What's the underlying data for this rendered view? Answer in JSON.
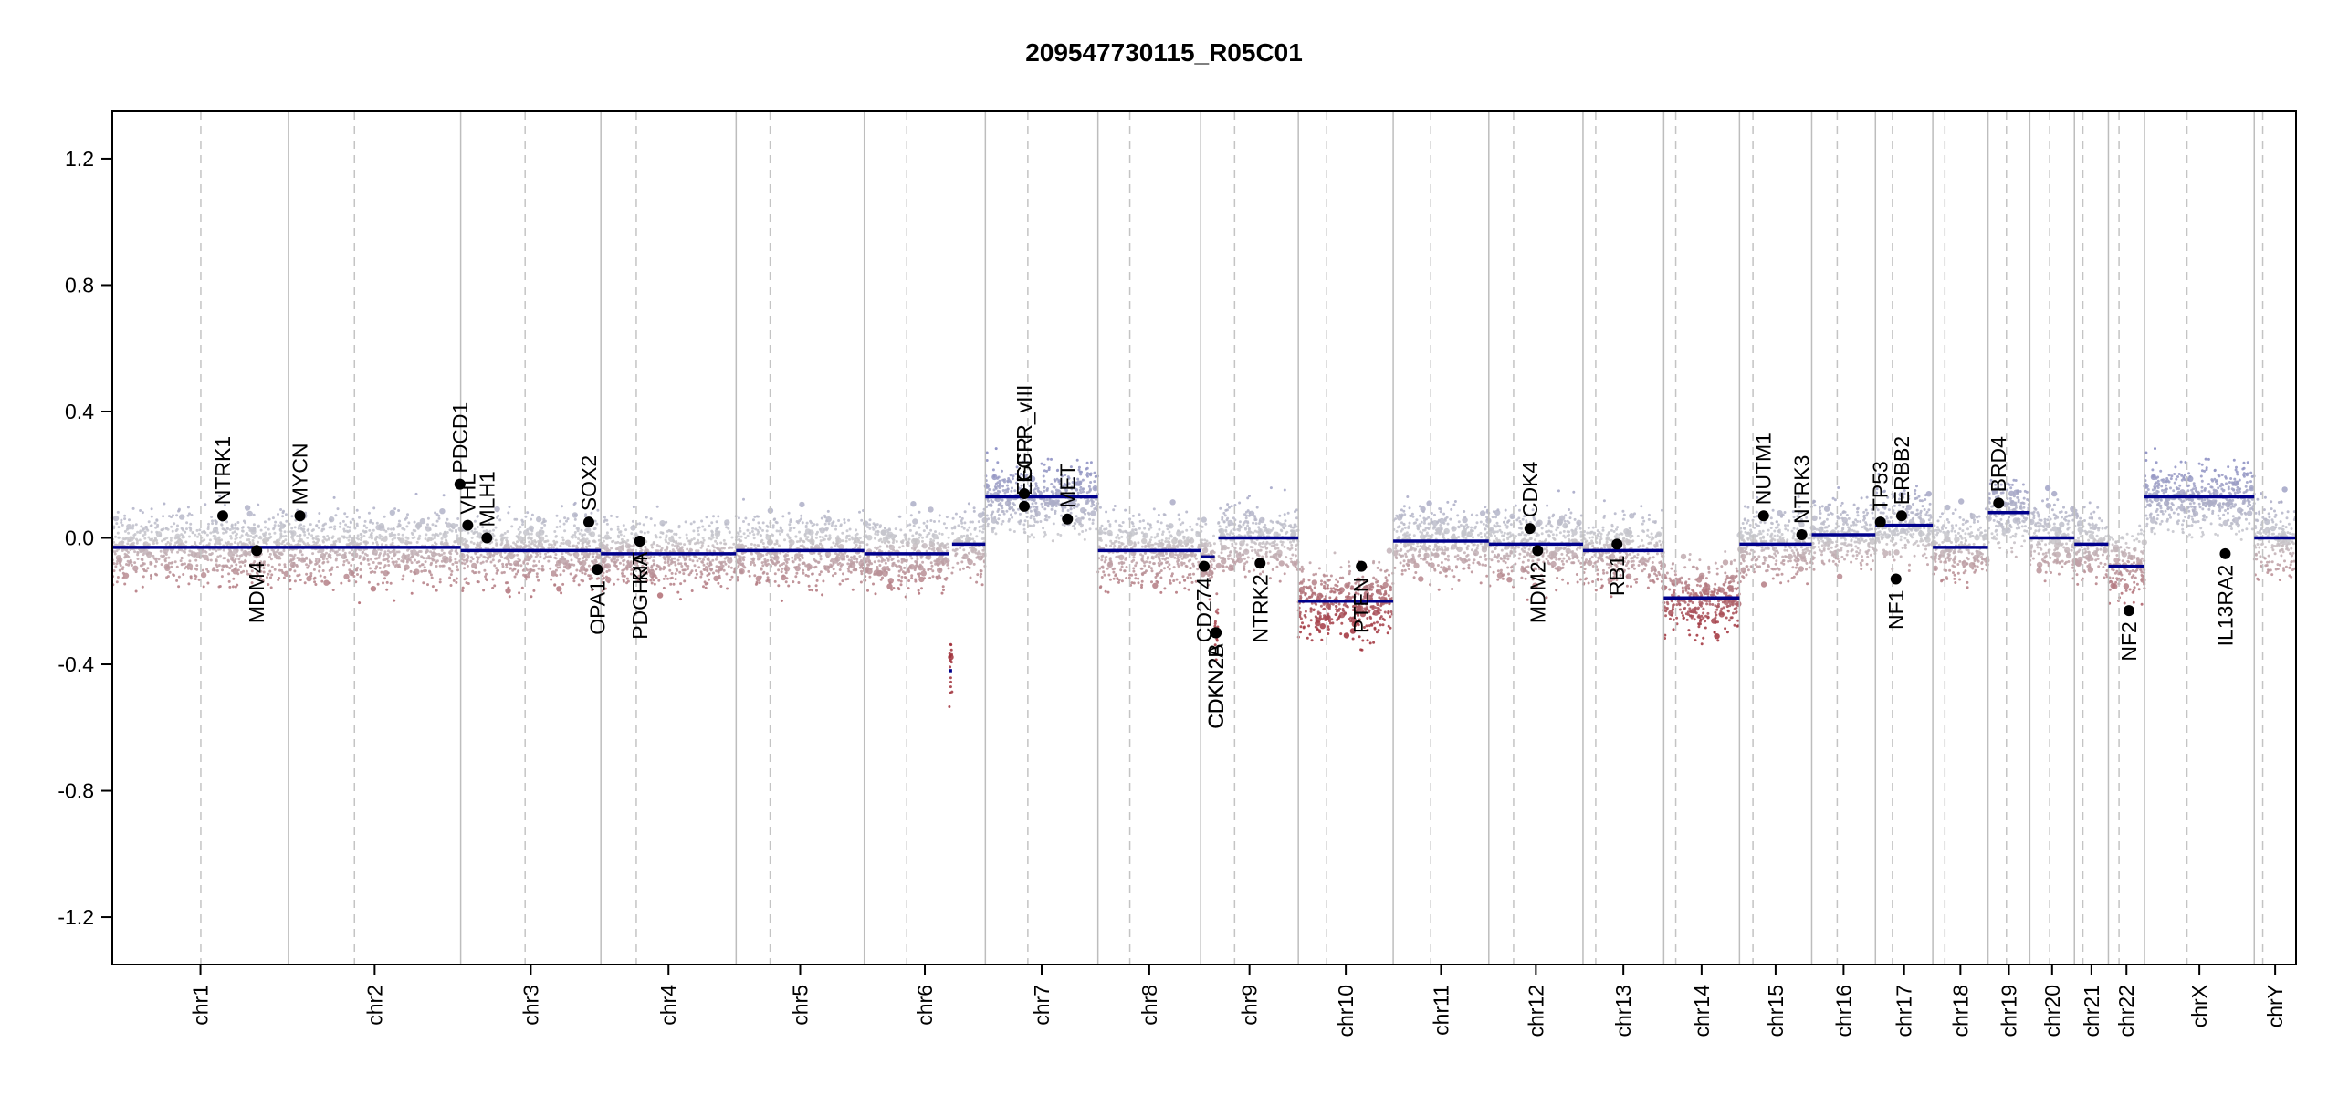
{
  "chart_data": {
    "type": "scatter",
    "title": "209547730115_R05C01",
    "xlabel": "",
    "ylabel": "",
    "ylim": [
      -1.35,
      1.35
    ],
    "y_ticks": [
      1.2,
      0.8,
      0.4,
      0.0,
      -0.4,
      -0.8,
      -1.2
    ],
    "y_tick_labels": [
      "1.2",
      "0.8",
      "0.4",
      "0.0",
      "-0.4",
      "-0.8",
      "-1.2"
    ],
    "grid": false,
    "colors": {
      "gain": "#7b7fbf",
      "loss": "#a0303a",
      "neutral": "#c8c8c8",
      "segment": "#00008b",
      "gene": "#000000"
    },
    "chromosomes": [
      {
        "name": "chr1",
        "length": 249,
        "centromere": 125,
        "segments": [
          {
            "start": 0,
            "end": 249,
            "value": -0.03
          }
        ]
      },
      {
        "name": "chr2",
        "length": 243,
        "centromere": 93,
        "segments": [
          {
            "start": 0,
            "end": 243,
            "value": -0.03
          }
        ]
      },
      {
        "name": "chr3",
        "length": 198,
        "centromere": 91,
        "segments": [
          {
            "start": 0,
            "end": 198,
            "value": -0.04
          }
        ]
      },
      {
        "name": "chr4",
        "length": 191,
        "centromere": 50,
        "segments": [
          {
            "start": 0,
            "end": 191,
            "value": -0.05
          }
        ]
      },
      {
        "name": "chr5",
        "length": 181,
        "centromere": 48,
        "segments": [
          {
            "start": 0,
            "end": 181,
            "value": -0.04
          }
        ]
      },
      {
        "name": "chr6",
        "length": 171,
        "centromere": 60,
        "segments": [
          {
            "start": 0,
            "end": 120,
            "value": -0.05
          },
          {
            "start": 120,
            "end": 124,
            "value": -0.42
          },
          {
            "start": 124,
            "end": 171,
            "value": -0.02
          }
        ]
      },
      {
        "name": "chr7",
        "length": 159,
        "centromere": 60,
        "segments": [
          {
            "start": 0,
            "end": 159,
            "value": 0.13
          }
        ]
      },
      {
        "name": "chr8",
        "length": 145,
        "centromere": 45,
        "segments": [
          {
            "start": 0,
            "end": 145,
            "value": -0.04
          }
        ]
      },
      {
        "name": "chr9",
        "length": 138,
        "centromere": 48,
        "segments": [
          {
            "start": 0,
            "end": 20,
            "value": -0.06
          },
          {
            "start": 20,
            "end": 25,
            "value": -0.3
          },
          {
            "start": 25,
            "end": 138,
            "value": 0.0
          }
        ]
      },
      {
        "name": "chr10",
        "length": 134,
        "centromere": 40,
        "segments": [
          {
            "start": 0,
            "end": 134,
            "value": -0.2
          }
        ]
      },
      {
        "name": "chr11",
        "length": 135,
        "centromere": 53,
        "segments": [
          {
            "start": 0,
            "end": 135,
            "value": -0.01
          }
        ]
      },
      {
        "name": "chr12",
        "length": 133,
        "centromere": 35,
        "segments": [
          {
            "start": 0,
            "end": 133,
            "value": -0.02
          }
        ]
      },
      {
        "name": "chr13",
        "length": 114,
        "centromere": 18,
        "segments": [
          {
            "start": 0,
            "end": 114,
            "value": -0.04
          }
        ]
      },
      {
        "name": "chr14",
        "length": 107,
        "centromere": 17,
        "segments": [
          {
            "start": 0,
            "end": 107,
            "value": -0.19
          }
        ]
      },
      {
        "name": "chr15",
        "length": 102,
        "centromere": 19,
        "segments": [
          {
            "start": 0,
            "end": 102,
            "value": -0.02
          }
        ]
      },
      {
        "name": "chr16",
        "length": 90,
        "centromere": 36,
        "segments": [
          {
            "start": 0,
            "end": 90,
            "value": 0.01
          }
        ]
      },
      {
        "name": "chr17",
        "length": 81,
        "centromere": 24,
        "segments": [
          {
            "start": 0,
            "end": 81,
            "value": 0.04
          }
        ]
      },
      {
        "name": "chr18",
        "length": 78,
        "centromere": 17,
        "segments": [
          {
            "start": 0,
            "end": 78,
            "value": -0.03
          }
        ]
      },
      {
        "name": "chr19",
        "length": 59,
        "centromere": 26,
        "segments": [
          {
            "start": 0,
            "end": 59,
            "value": 0.08
          }
        ]
      },
      {
        "name": "chr20",
        "length": 63,
        "centromere": 28,
        "segments": [
          {
            "start": 0,
            "end": 63,
            "value": 0.0
          }
        ]
      },
      {
        "name": "chr21",
        "length": 48,
        "centromere": 12,
        "segments": [
          {
            "start": 0,
            "end": 48,
            "value": -0.02
          }
        ]
      },
      {
        "name": "chr22",
        "length": 51,
        "centromere": 15,
        "segments": [
          {
            "start": 0,
            "end": 51,
            "value": -0.09
          }
        ]
      },
      {
        "name": "chrX",
        "length": 155,
        "centromere": 60,
        "segments": [
          {
            "start": 0,
            "end": 155,
            "value": 0.13
          }
        ]
      },
      {
        "name": "chrY",
        "length": 59,
        "centromere": 12,
        "segments": [
          {
            "start": 0,
            "end": 59,
            "value": 0.0
          }
        ]
      }
    ],
    "genes": [
      {
        "name": "NTRK1",
        "chrom": "chr1",
        "pos": 156,
        "value": 0.07
      },
      {
        "name": "MDM4",
        "chrom": "chr1",
        "pos": 204,
        "value": -0.04
      },
      {
        "name": "MYCN",
        "chrom": "chr2",
        "pos": 16,
        "value": 0.07
      },
      {
        "name": "VHL",
        "chrom": "chr3",
        "pos": 10,
        "value": 0.04
      },
      {
        "name": "PDCD1",
        "chrom": "chr2",
        "pos": 242,
        "value": 0.17
      },
      {
        "name": "MLH1",
        "chrom": "chr3",
        "pos": 37,
        "value": 0.0
      },
      {
        "name": "SOX2",
        "chrom": "chr3",
        "pos": 181,
        "value": 0.05
      },
      {
        "name": "OPA1",
        "chrom": "chr3",
        "pos": 193,
        "value": -0.1
      },
      {
        "name": "PDGFRA",
        "chrom": "chr4",
        "pos": 55,
        "value": -0.01
      },
      {
        "name": "KIT",
        "chrom": "chr4",
        "pos": 55,
        "value": -0.01
      },
      {
        "name": "EGFR_vIII",
        "chrom": "chr7",
        "pos": 55,
        "value": 0.14
      },
      {
        "name": "EGFR",
        "chrom": "chr7",
        "pos": 55,
        "value": 0.1
      },
      {
        "name": "MET",
        "chrom": "chr7",
        "pos": 116,
        "value": 0.06
      },
      {
        "name": "CD274",
        "chrom": "chr9",
        "pos": 5,
        "value": -0.09
      },
      {
        "name": "CDKN2A",
        "chrom": "chr9",
        "pos": 21,
        "value": -0.3
      },
      {
        "name": "CDKN2B",
        "chrom": "chr9",
        "pos": 22,
        "value": -0.3
      },
      {
        "name": "NTRK2",
        "chrom": "chr9",
        "pos": 84,
        "value": -0.08
      },
      {
        "name": "PTEN",
        "chrom": "chr10",
        "pos": 89,
        "value": -0.09
      },
      {
        "name": "CDK4",
        "chrom": "chr12",
        "pos": 58,
        "value": 0.03
      },
      {
        "name": "MDM2",
        "chrom": "chr12",
        "pos": 69,
        "value": -0.04
      },
      {
        "name": "RB1",
        "chrom": "chr13",
        "pos": 48,
        "value": -0.02
      },
      {
        "name": "NUTM1",
        "chrom": "chr15",
        "pos": 34,
        "value": 0.07
      },
      {
        "name": "NTRK3",
        "chrom": "chr15",
        "pos": 88,
        "value": 0.01
      },
      {
        "name": "TP53",
        "chrom": "chr17",
        "pos": 7,
        "value": 0.05
      },
      {
        "name": "NF1",
        "chrom": "chr17",
        "pos": 29,
        "value": -0.13
      },
      {
        "name": "ERBB2",
        "chrom": "chr17",
        "pos": 37,
        "value": 0.07
      },
      {
        "name": "BRD4",
        "chrom": "chr19",
        "pos": 15,
        "value": 0.11
      },
      {
        "name": "NF2",
        "chrom": "chr22",
        "pos": 29,
        "value": -0.23
      },
      {
        "name": "IL13RA2",
        "chrom": "chrX",
        "pos": 114,
        "value": -0.05
      }
    ]
  }
}
